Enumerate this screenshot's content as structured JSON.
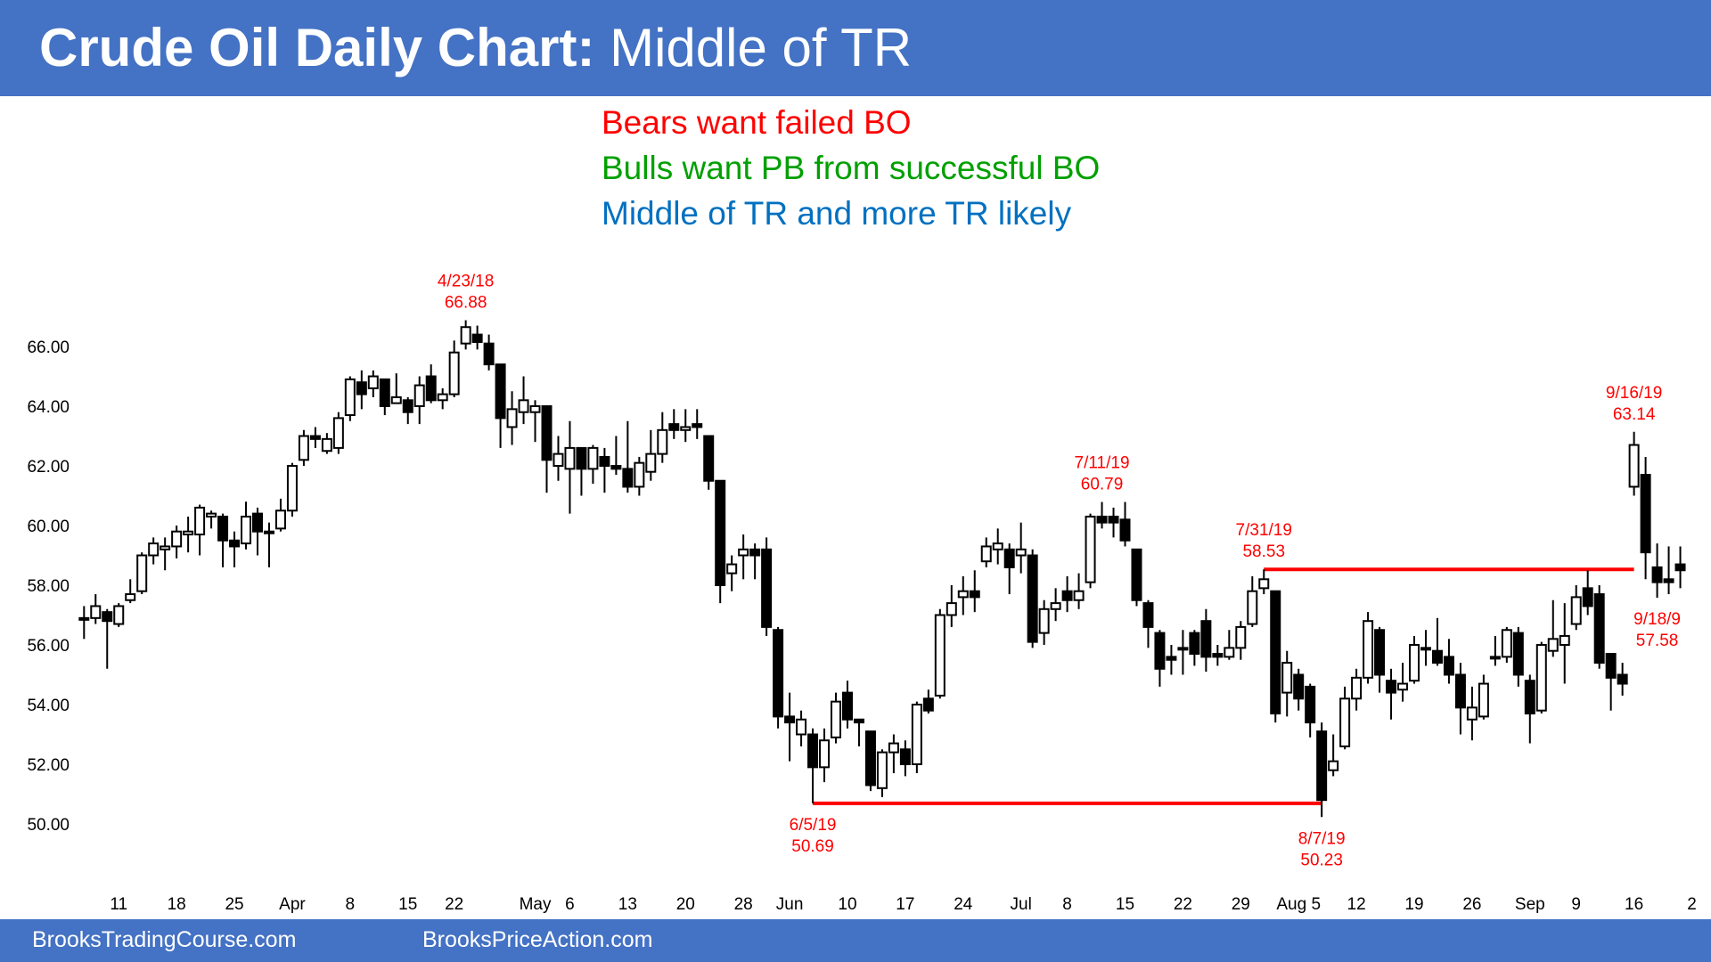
{
  "header": {
    "title_bold": "Crude Oil Daily Chart:",
    "title_rest": " Middle of TR"
  },
  "headlines": [
    {
      "text": "Bears want failed BO",
      "color": "#ff0000"
    },
    {
      "text": "Bulls want PB from successful BO",
      "color": "#00a000"
    },
    {
      "text": "Middle of TR and more TR likely",
      "color": "#0070c0"
    }
  ],
  "footer": {
    "left": "BrooksTradingCourse.com",
    "right": "BrooksPriceAction.com"
  },
  "colors": {
    "bar": "#4472c4",
    "annotation": "#ff0000",
    "candle": "#000000"
  },
  "chart_data": {
    "type": "candlestick",
    "title": "",
    "ylim": [
      49,
      67.5
    ],
    "yticks": [
      "50.00",
      "52.00",
      "54.00",
      "56.00",
      "58.00",
      "60.00",
      "62.00",
      "64.00",
      "66.00"
    ],
    "grid": false,
    "xticks": [
      {
        "label": "11",
        "date": "3/11"
      },
      {
        "label": "18",
        "date": "3/18"
      },
      {
        "label": "25",
        "date": "3/25"
      },
      {
        "label": "Apr",
        "date": "4/1"
      },
      {
        "label": "8",
        "date": "4/8"
      },
      {
        "label": "15",
        "date": "4/15"
      },
      {
        "label": "22",
        "date": "4/22"
      },
      {
        "label": "May",
        "date": "5/1"
      },
      {
        "label": "6",
        "date": "5/6"
      },
      {
        "label": "13",
        "date": "5/13"
      },
      {
        "label": "20",
        "date": "5/20"
      },
      {
        "label": "28",
        "date": "5/28"
      },
      {
        "label": "Jun",
        "date": "6/3"
      },
      {
        "label": "10",
        "date": "6/10"
      },
      {
        "label": "17",
        "date": "6/17"
      },
      {
        "label": "24",
        "date": "6/24"
      },
      {
        "label": "Jul",
        "date": "7/1"
      },
      {
        "label": "8",
        "date": "7/8"
      },
      {
        "label": "15",
        "date": "7/15"
      },
      {
        "label": "22",
        "date": "7/22"
      },
      {
        "label": "29",
        "date": "7/29"
      },
      {
        "label": "Aug 5",
        "date": "8/5"
      },
      {
        "label": "12",
        "date": "8/12"
      },
      {
        "label": "19",
        "date": "8/19"
      },
      {
        "label": "26",
        "date": "8/26"
      },
      {
        "label": "Sep",
        "date": "9/3"
      },
      {
        "label": "9",
        "date": "9/9"
      },
      {
        "label": "16",
        "date": "9/16"
      },
      {
        "label": "2",
        "date": "9/23"
      }
    ],
    "candles": [
      [
        "3/6",
        56.9,
        57.3,
        56.2,
        56.9
      ],
      [
        "3/7",
        56.9,
        57.7,
        56.7,
        57.3
      ],
      [
        "3/8",
        57.1,
        57.2,
        55.2,
        56.8
      ],
      [
        "3/11",
        56.7,
        57.4,
        56.6,
        57.3
      ],
      [
        "3/12",
        57.5,
        58.2,
        57.4,
        57.7
      ],
      [
        "3/13",
        57.8,
        59.1,
        57.7,
        59.0
      ],
      [
        "3/14",
        59.0,
        59.6,
        58.7,
        59.4
      ],
      [
        "3/15",
        59.2,
        59.6,
        58.5,
        59.3
      ],
      [
        "3/18",
        59.3,
        60.0,
        58.9,
        59.8
      ],
      [
        "3/19",
        59.7,
        60.3,
        59.1,
        59.8
      ],
      [
        "3/20",
        59.7,
        60.7,
        59.0,
        60.6
      ],
      [
        "3/21",
        60.3,
        60.5,
        59.9,
        60.4
      ],
      [
        "3/22",
        60.3,
        60.4,
        58.6,
        59.5
      ],
      [
        "3/25",
        59.5,
        59.8,
        58.6,
        59.3
      ],
      [
        "3/26",
        59.4,
        60.8,
        59.2,
        60.3
      ],
      [
        "3/27",
        60.4,
        60.6,
        59.0,
        59.8
      ],
      [
        "3/28",
        59.8,
        60.1,
        58.6,
        59.8
      ],
      [
        "3/29",
        59.9,
        60.9,
        59.8,
        60.5
      ],
      [
        "4/1",
        60.5,
        62.1,
        60.3,
        62.0
      ],
      [
        "4/2",
        62.2,
        63.2,
        62.0,
        63.0
      ],
      [
        "4/3",
        63.0,
        63.3,
        62.6,
        62.9
      ],
      [
        "4/4",
        62.5,
        63.1,
        62.4,
        62.9
      ],
      [
        "4/5",
        62.6,
        63.8,
        62.4,
        63.6
      ],
      [
        "4/8",
        63.7,
        65.0,
        63.5,
        64.9
      ],
      [
        "4/9",
        64.8,
        65.2,
        63.9,
        64.4
      ],
      [
        "4/10",
        64.6,
        65.2,
        64.3,
        65.0
      ],
      [
        "4/11",
        64.9,
        64.9,
        63.7,
        64.0
      ],
      [
        "4/12",
        64.1,
        65.1,
        64.1,
        64.3
      ],
      [
        "4/15",
        64.2,
        64.3,
        63.4,
        63.8
      ],
      [
        "4/16",
        64.0,
        65.0,
        63.4,
        64.7
      ],
      [
        "4/17",
        65.0,
        65.4,
        64.1,
        64.2
      ],
      [
        "4/18",
        64.2,
        64.6,
        63.9,
        64.4
      ],
      [
        "4/22",
        64.4,
        66.2,
        64.3,
        65.8
      ],
      [
        "4/23",
        66.1,
        66.88,
        65.9,
        66.65
      ],
      [
        "4/24",
        66.4,
        66.7,
        65.9,
        66.15
      ],
      [
        "4/25",
        66.1,
        66.4,
        65.2,
        65.4
      ],
      [
        "4/26",
        65.4,
        65.4,
        62.6,
        63.6
      ],
      [
        "4/29",
        63.3,
        64.5,
        62.7,
        63.9
      ],
      [
        "4/30",
        63.8,
        65.0,
        63.4,
        64.2
      ],
      [
        "5/1",
        63.8,
        64.2,
        62.8,
        64.0
      ],
      [
        "5/2",
        64.0,
        64.0,
        61.1,
        62.2
      ],
      [
        "5/3",
        62.0,
        63.0,
        61.5,
        62.4
      ],
      [
        "5/6",
        61.9,
        63.5,
        60.4,
        62.6
      ],
      [
        "5/7",
        62.6,
        62.6,
        61.0,
        61.9
      ],
      [
        "5/8",
        61.9,
        62.7,
        61.4,
        62.6
      ],
      [
        "5/9",
        62.3,
        62.6,
        61.1,
        62.0
      ],
      [
        "5/10",
        62.0,
        63.0,
        61.7,
        61.9
      ],
      [
        "5/13",
        61.9,
        63.5,
        61.1,
        61.3
      ],
      [
        "5/14",
        61.3,
        62.3,
        61.0,
        62.1
      ],
      [
        "5/15",
        61.8,
        63.2,
        61.5,
        62.4
      ],
      [
        "5/16",
        62.4,
        63.8,
        62.1,
        63.2
      ],
      [
        "5/17",
        63.4,
        63.9,
        62.9,
        63.2
      ],
      [
        "5/20",
        63.2,
        63.9,
        62.8,
        63.3
      ],
      [
        "5/21",
        63.4,
        63.9,
        62.9,
        63.3
      ],
      [
        "5/22",
        63.0,
        63.0,
        61.2,
        61.5
      ],
      [
        "5/23",
        61.5,
        61.5,
        57.4,
        58.0
      ],
      [
        "5/24",
        58.4,
        59.0,
        57.8,
        58.7
      ],
      [
        "5/28",
        59.0,
        59.7,
        58.2,
        59.2
      ],
      [
        "5/29",
        59.2,
        59.4,
        58.2,
        59.0
      ],
      [
        "5/30",
        59.2,
        59.6,
        56.3,
        56.6
      ],
      [
        "5/31",
        56.5,
        56.6,
        53.2,
        53.6
      ],
      [
        "6/3",
        53.6,
        54.4,
        52.1,
        53.4
      ],
      [
        "6/4",
        53.0,
        53.8,
        52.6,
        53.5
      ],
      [
        "6/5",
        53.0,
        53.2,
        50.69,
        51.9
      ],
      [
        "6/6",
        51.9,
        53.2,
        51.4,
        52.8
      ],
      [
        "6/7",
        52.9,
        54.4,
        52.7,
        54.1
      ],
      [
        "6/10",
        54.4,
        54.8,
        53.2,
        53.5
      ],
      [
        "6/11",
        53.5,
        53.5,
        52.6,
        53.4
      ],
      [
        "6/12",
        53.1,
        53.1,
        51.1,
        51.3
      ],
      [
        "6/13",
        51.2,
        52.5,
        50.9,
        52.4
      ],
      [
        "6/14",
        52.4,
        53.0,
        51.7,
        52.7
      ],
      [
        "6/17",
        52.5,
        52.8,
        51.6,
        52.0
      ],
      [
        "6/18",
        52.0,
        54.1,
        51.7,
        54.0
      ],
      [
        "6/19",
        54.2,
        54.5,
        53.7,
        53.8
      ],
      [
        "6/20",
        54.3,
        57.2,
        54.2,
        57.0
      ],
      [
        "6/21",
        57.0,
        58.0,
        56.6,
        57.4
      ],
      [
        "6/24",
        57.6,
        58.3,
        57.0,
        57.8
      ],
      [
        "6/25",
        57.8,
        58.5,
        57.1,
        57.6
      ],
      [
        "6/26",
        58.8,
        59.6,
        58.6,
        59.3
      ],
      [
        "6/27",
        59.2,
        59.9,
        58.7,
        59.4
      ],
      [
        "6/28",
        59.2,
        59.4,
        57.7,
        58.6
      ],
      [
        "7/1",
        59.0,
        60.1,
        58.4,
        59.2
      ],
      [
        "7/2",
        59.0,
        59.2,
        55.9,
        56.1
      ],
      [
        "7/3",
        56.4,
        57.5,
        56.0,
        57.2
      ],
      [
        "7/5",
        57.2,
        57.9,
        56.8,
        57.4
      ],
      [
        "7/8",
        57.8,
        58.3,
        57.1,
        57.5
      ],
      [
        "7/9",
        57.5,
        58.4,
        57.2,
        57.8
      ],
      [
        "7/10",
        58.1,
        60.4,
        57.9,
        60.3
      ],
      [
        "7/11",
        60.3,
        60.79,
        59.9,
        60.1
      ],
      [
        "7/12",
        60.3,
        60.6,
        59.6,
        60.1
      ],
      [
        "7/15",
        60.2,
        60.79,
        59.3,
        59.5
      ],
      [
        "7/16",
        59.2,
        59.2,
        57.3,
        57.5
      ],
      [
        "7/17",
        57.4,
        57.5,
        55.9,
        56.6
      ],
      [
        "7/18",
        56.4,
        56.5,
        54.6,
        55.2
      ],
      [
        "7/19",
        55.6,
        56.0,
        55.0,
        55.5
      ],
      [
        "7/22",
        55.9,
        56.5,
        55.0,
        55.9
      ],
      [
        "7/23",
        56.4,
        56.5,
        55.3,
        55.7
      ],
      [
        "7/24",
        56.8,
        57.2,
        55.1,
        55.6
      ],
      [
        "7/25",
        55.7,
        56.0,
        55.3,
        55.6
      ],
      [
        "7/26",
        55.6,
        56.5,
        55.5,
        55.9
      ],
      [
        "7/29",
        55.9,
        56.8,
        55.5,
        56.6
      ],
      [
        "7/30",
        56.7,
        58.3,
        56.6,
        57.8
      ],
      [
        "7/31",
        57.9,
        58.53,
        57.7,
        58.2
      ],
      [
        "8/1",
        57.8,
        57.8,
        53.4,
        53.7
      ],
      [
        "8/2",
        54.4,
        55.8,
        53.6,
        55.4
      ],
      [
        "8/5",
        55.0,
        55.2,
        53.8,
        54.2
      ],
      [
        "8/6",
        54.6,
        54.7,
        52.9,
        53.4
      ],
      [
        "8/7",
        53.1,
        53.4,
        50.23,
        50.8
      ],
      [
        "8/8",
        51.8,
        53.0,
        51.6,
        52.1
      ],
      [
        "8/9",
        52.6,
        54.6,
        52.5,
        54.2
      ],
      [
        "8/12",
        54.2,
        55.2,
        53.8,
        54.9
      ],
      [
        "8/13",
        54.9,
        57.1,
        54.7,
        56.8
      ],
      [
        "8/14",
        56.5,
        56.6,
        54.4,
        55.0
      ],
      [
        "8/15",
        54.8,
        55.2,
        53.5,
        54.4
      ],
      [
        "8/16",
        54.5,
        55.4,
        54.1,
        54.7
      ],
      [
        "8/19",
        54.8,
        56.3,
        54.7,
        56.0
      ],
      [
        "8/20",
        55.9,
        56.5,
        55.3,
        55.9
      ],
      [
        "8/21",
        55.8,
        56.9,
        55.3,
        55.4
      ],
      [
        "8/22",
        55.6,
        56.2,
        54.7,
        55.0
      ],
      [
        "8/23",
        55.0,
        55.4,
        53.0,
        53.9
      ],
      [
        "8/26",
        53.5,
        54.6,
        52.8,
        53.9
      ],
      [
        "8/27",
        53.6,
        55.0,
        53.5,
        54.7
      ],
      [
        "8/28",
        55.6,
        56.3,
        55.3,
        55.6
      ],
      [
        "8/29",
        55.6,
        56.6,
        55.4,
        56.5
      ],
      [
        "8/30",
        56.4,
        56.6,
        54.6,
        55.0
      ],
      [
        "9/3",
        54.8,
        55.0,
        52.7,
        53.7
      ],
      [
        "9/4",
        53.8,
        56.1,
        53.7,
        56.0
      ],
      [
        "9/5",
        55.8,
        57.5,
        55.6,
        56.2
      ],
      [
        "9/6",
        56.0,
        57.4,
        54.7,
        56.3
      ],
      [
        "9/9",
        56.7,
        58.0,
        56.5,
        57.6
      ],
      [
        "9/10",
        57.9,
        58.5,
        57.0,
        57.3
      ],
      [
        "9/11",
        57.7,
        58.0,
        55.2,
        55.4
      ],
      [
        "9/12",
        55.7,
        55.7,
        53.8,
        54.9
      ],
      [
        "9/13",
        55.0,
        55.4,
        54.3,
        54.7
      ],
      [
        "9/16",
        61.3,
        63.14,
        61.0,
        62.7
      ],
      [
        "9/17",
        61.7,
        62.3,
        58.2,
        59.1
      ],
      [
        "9/18",
        58.6,
        59.4,
        57.58,
        58.1
      ],
      [
        "9/19",
        58.2,
        59.3,
        57.7,
        58.1
      ],
      [
        "9/20",
        58.7,
        59.3,
        57.9,
        58.5
      ]
    ],
    "lines": [
      {
        "price": 50.69,
        "from": "6/5",
        "to": "8/7",
        "color": "#ff0000"
      },
      {
        "price": 58.53,
        "from": "7/31",
        "to": "9/16",
        "color": "#ff0000"
      }
    ],
    "annotations": [
      {
        "date": "4/23",
        "pos": "above",
        "lines": [
          "4/23/18",
          "66.88"
        ]
      },
      {
        "date": "6/5",
        "pos": "below",
        "lines": [
          "6/5/19",
          "50.69"
        ]
      },
      {
        "date": "7/11",
        "pos": "above",
        "lines": [
          "7/11/19",
          "60.79"
        ]
      },
      {
        "date": "7/31",
        "pos": "above",
        "lines": [
          "7/31/19",
          "58.53"
        ]
      },
      {
        "date": "8/7",
        "pos": "below",
        "lines": [
          "8/7/19",
          "50.23"
        ]
      },
      {
        "date": "9/16",
        "pos": "above",
        "lines": [
          "9/16/19",
          "63.14"
        ]
      },
      {
        "date": "9/18",
        "pos": "below",
        "lines": [
          "9/18/9",
          "57.58"
        ]
      }
    ]
  }
}
